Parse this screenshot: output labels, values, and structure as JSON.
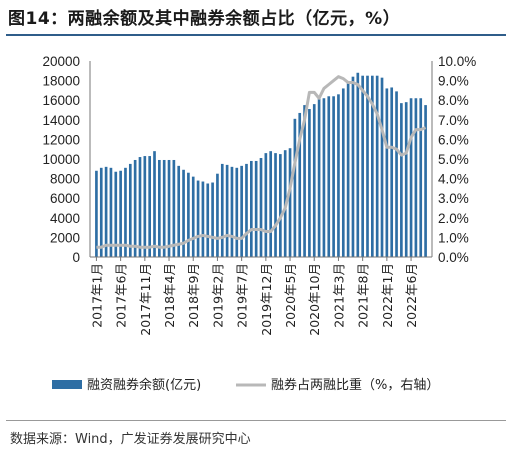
{
  "page": {
    "title": "图14：两融余额及其中融券余额占比（亿元，%）",
    "source": "数据来源：Wind，广发证券发展研究中心"
  },
  "colors": {
    "bar": "#2e6ea4",
    "line": "#b8b8b8",
    "rule": "#2f5d8a"
  },
  "chart_data": {
    "type": "bar",
    "title": "",
    "xlabel": "",
    "ylabel": "",
    "ylim": [
      0,
      20000
    ],
    "y2lim": [
      0,
      10
    ],
    "yticks": [
      "0",
      "2000",
      "4000",
      "6000",
      "8000",
      "10000",
      "12000",
      "14000",
      "16000",
      "18000",
      "20000"
    ],
    "y2ticks": [
      "0.0%",
      "1.0%",
      "2.0%",
      "3.0%",
      "4.0%",
      "5.0%",
      "6.0%",
      "7.0%",
      "8.0%",
      "9.0%",
      "10.0%"
    ],
    "xtick_labels": [
      "2017年1月",
      "2017年6月",
      "2017年11月",
      "2018年4月",
      "2018年9月",
      "2019年2月",
      "2019年7月",
      "2019年12月",
      "2020年5月",
      "2020年10月",
      "2021年3月",
      "2021年8月",
      "2022年1月",
      "2022年6月"
    ],
    "xtick_indices": [
      0,
      5,
      10,
      15,
      20,
      25,
      30,
      35,
      40,
      45,
      50,
      55,
      60,
      65
    ],
    "legend_position": "bottom",
    "x": [
      "2017-01",
      "2017-02",
      "2017-03",
      "2017-04",
      "2017-05",
      "2017-06",
      "2017-07",
      "2017-08",
      "2017-09",
      "2017-10",
      "2017-11",
      "2017-12",
      "2018-01",
      "2018-02",
      "2018-03",
      "2018-04",
      "2018-05",
      "2018-06",
      "2018-07",
      "2018-08",
      "2018-09",
      "2018-10",
      "2018-11",
      "2018-12",
      "2019-01",
      "2019-02",
      "2019-03",
      "2019-04",
      "2019-05",
      "2019-06",
      "2019-07",
      "2019-08",
      "2019-09",
      "2019-10",
      "2019-11",
      "2019-12",
      "2020-01",
      "2020-02",
      "2020-03",
      "2020-04",
      "2020-05",
      "2020-06",
      "2020-07",
      "2020-08",
      "2020-09",
      "2020-10",
      "2020-11",
      "2020-12",
      "2021-01",
      "2021-02",
      "2021-03",
      "2021-04",
      "2021-05",
      "2021-06",
      "2021-07",
      "2021-08",
      "2021-09",
      "2021-10",
      "2021-11",
      "2021-12",
      "2022-01",
      "2022-02",
      "2022-03",
      "2022-04",
      "2022-05",
      "2022-06",
      "2022-07",
      "2022-08",
      "2022-09"
    ],
    "series": [
      {
        "name": "融资融券余额(亿元)",
        "type": "bar",
        "axis": "left",
        "values": [
          8800,
          9100,
          9200,
          9100,
          8700,
          8800,
          9100,
          9500,
          9900,
          10200,
          10300,
          10300,
          10800,
          9900,
          9900,
          9900,
          9900,
          9300,
          8900,
          8600,
          8200,
          7800,
          7700,
          7500,
          7600,
          8500,
          9500,
          9400,
          9200,
          9100,
          9300,
          9500,
          9800,
          9800,
          10100,
          10600,
          10800,
          10600,
          10500,
          10900,
          11100,
          14100,
          14700,
          15500,
          15100,
          15600,
          16300,
          16200,
          16400,
          16400,
          16600,
          17200,
          17900,
          18400,
          18800,
          18500,
          18500,
          18500,
          18500,
          18300,
          17200,
          17300,
          16900,
          15700,
          15800,
          16200,
          16200,
          16200,
          15500
        ]
      },
      {
        "name": "融券占两融比重（%，右轴）",
        "type": "line",
        "axis": "right",
        "values": [
          0.5,
          0.5,
          0.6,
          0.6,
          0.6,
          0.6,
          0.6,
          0.55,
          0.55,
          0.5,
          0.5,
          0.5,
          0.55,
          0.5,
          0.5,
          0.55,
          0.6,
          0.65,
          0.7,
          0.85,
          0.95,
          1.05,
          1.1,
          1.05,
          1.0,
          0.95,
          1.0,
          1.1,
          1.05,
          0.95,
          0.95,
          1.2,
          1.4,
          1.4,
          1.4,
          1.3,
          1.3,
          1.6,
          2.0,
          2.5,
          3.5,
          4.8,
          6.0,
          7.0,
          8.4,
          8.4,
          8.1,
          8.6,
          8.8,
          9.0,
          9.2,
          9.1,
          8.9,
          8.9,
          8.8,
          8.5,
          8.2,
          7.8,
          7.3,
          6.5,
          5.6,
          5.6,
          5.5,
          5.2,
          5.3,
          6.1,
          6.5,
          6.5,
          6.6
        ]
      }
    ]
  }
}
